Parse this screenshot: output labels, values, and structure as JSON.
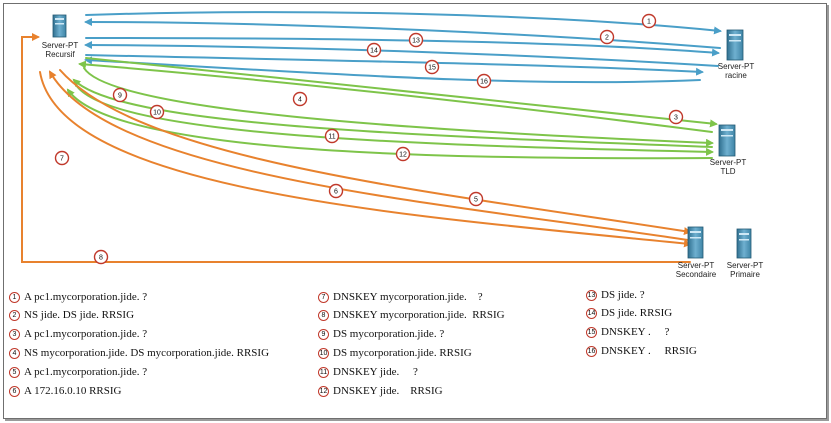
{
  "servers": {
    "recursive": {
      "name": "Server-PT",
      "role": "Recursif"
    },
    "root": {
      "name": "Server-PT",
      "role": "racine"
    },
    "tld": {
      "name": "Server-PT",
      "role": "TLD"
    },
    "secondary": {
      "name": "Server-PT",
      "role": "Secondaire"
    },
    "primary": {
      "name": "Server-PT",
      "role": "Primaire"
    }
  },
  "arrow_numbers": [
    "1",
    "2",
    "3",
    "4",
    "5",
    "6",
    "7",
    "8",
    "9",
    "10",
    "11",
    "12",
    "13",
    "14",
    "15",
    "16"
  ],
  "colors": {
    "root_link": "#4a9fc8",
    "tld_link": "#7ec44a",
    "auth_link": "#e8822e",
    "badge_border": "#c0392b"
  },
  "legend": [
    {
      "num": "1",
      "text": "A pc1.mycorporation.jide. ?"
    },
    {
      "num": "2",
      "text": "NS jide. DS jide. RRSIG"
    },
    {
      "num": "3",
      "text": "A pc1.mycorporation.jide. ?"
    },
    {
      "num": "4",
      "text": "NS mycorporation.jide. DS mycorporation.jide. RRSIG"
    },
    {
      "num": "5",
      "text": "A pc1.mycorporation.jide. ?"
    },
    {
      "num": "6",
      "text": "A 172.16.0.10 RRSIG"
    },
    {
      "num": "7",
      "text": "DNSKEY mycorporation.jide.    ?"
    },
    {
      "num": "8",
      "text": "DNSKEY mycorporation.jide.  RRSIG"
    },
    {
      "num": "9",
      "text": "DS mycorporation.jide. ?"
    },
    {
      "num": "10",
      "text": "DS mycorporation.jide. RRSIG"
    },
    {
      "num": "11",
      "text": "DNSKEY jide.     ?"
    },
    {
      "num": "12",
      "text": "DNSKEY jide.    RRSIG"
    },
    {
      "num": "13",
      "text": "DS jide. ?"
    },
    {
      "num": "14",
      "text": "DS jide. RRSIG"
    },
    {
      "num": "15",
      "text": "DNSKEY .     ?"
    },
    {
      "num": "16",
      "text": "DNSKEY .     RRSIG"
    }
  ]
}
